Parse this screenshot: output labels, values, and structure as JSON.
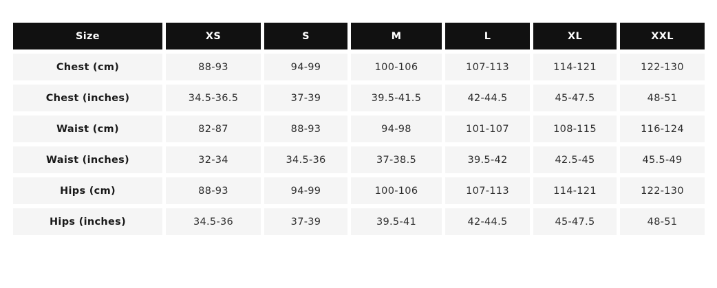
{
  "chart_data": {
    "type": "table",
    "columns": [
      "Size",
      "XS",
      "S",
      "M",
      "L",
      "XL",
      "XXL"
    ],
    "rows": [
      {
        "label": "Chest (cm)",
        "values": [
          "88-93",
          "94-99",
          "100-106",
          "107-113",
          "114-121",
          "122-130"
        ]
      },
      {
        "label": "Chest (inches)",
        "values": [
          "34.5-36.5",
          "37-39",
          "39.5-41.5",
          "42-44.5",
          "45-47.5",
          "48-51"
        ]
      },
      {
        "label": "Waist (cm)",
        "values": [
          "82-87",
          "88-93",
          "94-98",
          "101-107",
          "108-115",
          "116-124"
        ]
      },
      {
        "label": "Waist (inches)",
        "values": [
          "32-34",
          "34.5-36",
          "37-38.5",
          "39.5-42",
          "42.5-45",
          "45.5-49"
        ]
      },
      {
        "label": "Hips (cm)",
        "values": [
          "88-93",
          "94-99",
          "100-106",
          "107-113",
          "114-121",
          "122-130"
        ]
      },
      {
        "label": "Hips (inches)",
        "values": [
          "34.5-36",
          "37-39",
          "39.5-41",
          "42-44.5",
          "45-47.5",
          "48-51"
        ]
      }
    ],
    "layout": {
      "legend": "none",
      "grid": "off",
      "gaps": "white gutters between flat cells"
    },
    "colors": {
      "header_bg": "#111111",
      "header_text": "#ffffff",
      "cell_bg": "#f5f5f5",
      "row_label_text": "#1a1a1a",
      "value_text": "#2e2e2e",
      "page_bg": "#ffffff"
    }
  }
}
